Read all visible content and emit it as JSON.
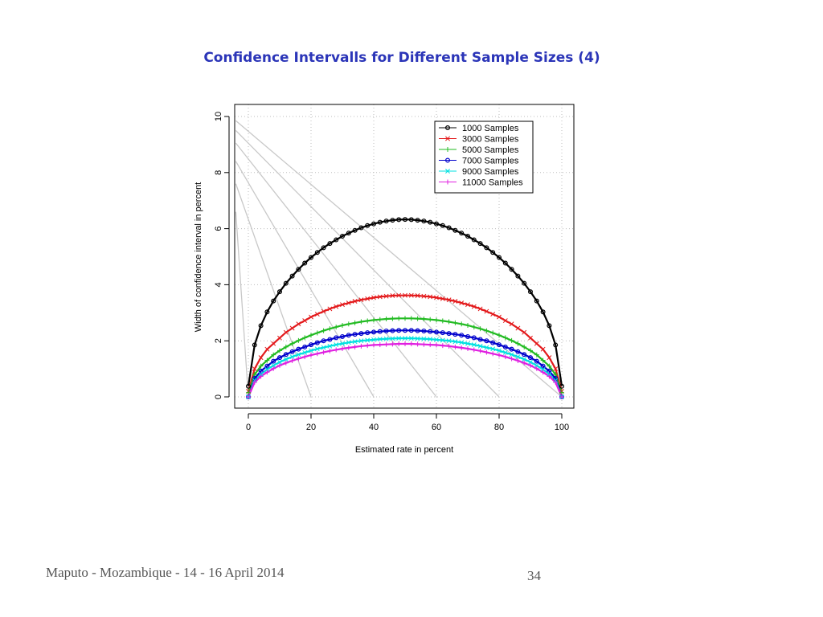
{
  "slide": {
    "title": "Confidence Intervalls for Different Sample Sizes (4)",
    "footer_left": "Maputo - Mozambique - 14 - 16 April 2014",
    "page_number": "34"
  },
  "chart_data": {
    "type": "line",
    "xlabel": "Estimated rate in percent",
    "ylabel": "Width of confidence interval in percent",
    "xlim": [
      0,
      100
    ],
    "ylim": [
      0,
      10
    ],
    "x_ticks": [
      "0",
      "20",
      "40",
      "60",
      "80",
      "100"
    ],
    "y_ticks": [
      "0",
      "2",
      "4",
      "6",
      "8",
      "10"
    ],
    "grid": true,
    "legend_position": "top-right",
    "x": [
      0,
      2,
      4,
      6,
      8,
      10,
      12,
      14,
      16,
      18,
      20,
      22,
      24,
      26,
      28,
      30,
      32,
      34,
      36,
      38,
      40,
      42,
      44,
      46,
      48,
      50,
      52,
      54,
      56,
      58,
      60,
      62,
      64,
      66,
      68,
      70,
      72,
      74,
      76,
      78,
      80,
      82,
      84,
      86,
      88,
      90,
      92,
      94,
      96,
      98,
      100
    ],
    "series": [
      {
        "name": "1000 Samples",
        "color": "#000000",
        "marker": "o",
        "values": [
          0.38,
          1.85,
          2.54,
          3.03,
          3.42,
          3.75,
          4.05,
          4.31,
          4.55,
          4.77,
          4.97,
          5.15,
          5.32,
          5.47,
          5.6,
          5.73,
          5.84,
          5.94,
          6.03,
          6.11,
          6.17,
          6.23,
          6.27,
          6.3,
          6.32,
          6.33,
          6.32,
          6.3,
          6.27,
          6.23,
          6.17,
          6.11,
          6.03,
          5.94,
          5.84,
          5.73,
          5.6,
          5.47,
          5.32,
          5.15,
          4.97,
          4.77,
          4.55,
          4.31,
          4.05,
          3.75,
          3.42,
          3.03,
          2.54,
          1.85,
          0.38
        ]
      },
      {
        "name": "3000 Samples",
        "color": "#e31a1c",
        "marker": "x",
        "values": [
          0.2,
          1.0,
          1.4,
          1.7,
          1.9,
          2.1,
          2.3,
          2.45,
          2.6,
          2.72,
          2.85,
          2.95,
          3.05,
          3.14,
          3.22,
          3.29,
          3.35,
          3.41,
          3.46,
          3.5,
          3.54,
          3.57,
          3.59,
          3.61,
          3.62,
          3.62,
          3.62,
          3.61,
          3.59,
          3.57,
          3.54,
          3.5,
          3.46,
          3.41,
          3.35,
          3.29,
          3.22,
          3.14,
          3.05,
          2.95,
          2.85,
          2.72,
          2.6,
          2.45,
          2.3,
          2.1,
          1.9,
          1.7,
          1.4,
          1.0,
          0.2
        ]
      },
      {
        "name": "5000 Samples",
        "color": "#22bb22",
        "marker": "+",
        "values": [
          0.15,
          0.8,
          1.1,
          1.3,
          1.5,
          1.65,
          1.78,
          1.9,
          2.01,
          2.11,
          2.2,
          2.28,
          2.36,
          2.43,
          2.49,
          2.55,
          2.6,
          2.64,
          2.68,
          2.71,
          2.74,
          2.76,
          2.78,
          2.79,
          2.8,
          2.8,
          2.8,
          2.79,
          2.78,
          2.76,
          2.74,
          2.71,
          2.68,
          2.64,
          2.6,
          2.55,
          2.49,
          2.43,
          2.36,
          2.28,
          2.2,
          2.11,
          2.01,
          1.9,
          1.78,
          1.65,
          1.5,
          1.3,
          1.1,
          0.8,
          0.15
        ]
      },
      {
        "name": "7000 Samples",
        "color": "#0000cc",
        "marker": "o",
        "values": [
          0.0,
          0.66,
          0.92,
          1.1,
          1.27,
          1.4,
          1.51,
          1.61,
          1.7,
          1.78,
          1.86,
          1.93,
          2.0,
          2.05,
          2.11,
          2.15,
          2.2,
          2.23,
          2.26,
          2.29,
          2.31,
          2.33,
          2.35,
          2.36,
          2.37,
          2.37,
          2.37,
          2.36,
          2.35,
          2.33,
          2.31,
          2.29,
          2.26,
          2.23,
          2.2,
          2.15,
          2.11,
          2.05,
          2.0,
          1.93,
          1.86,
          1.78,
          1.7,
          1.61,
          1.51,
          1.4,
          1.27,
          1.1,
          0.92,
          0.66,
          0.0
        ]
      },
      {
        "name": "9000 Samples",
        "color": "#00e0e0",
        "marker": "x",
        "values": [
          0.0,
          0.58,
          0.81,
          0.98,
          1.12,
          1.24,
          1.34,
          1.43,
          1.51,
          1.58,
          1.65,
          1.71,
          1.76,
          1.81,
          1.86,
          1.9,
          1.94,
          1.97,
          2.0,
          2.02,
          2.04,
          2.06,
          2.07,
          2.08,
          2.09,
          2.09,
          2.09,
          2.08,
          2.07,
          2.06,
          2.04,
          2.02,
          2.0,
          1.97,
          1.94,
          1.9,
          1.86,
          1.81,
          1.76,
          1.71,
          1.65,
          1.58,
          1.51,
          1.43,
          1.34,
          1.24,
          1.12,
          0.98,
          0.81,
          0.58,
          0.0
        ]
      },
      {
        "name": "11000 Samples",
        "color": "#e020e0",
        "marker": "+",
        "values": [
          0.0,
          0.52,
          0.73,
          0.88,
          1.01,
          1.12,
          1.21,
          1.29,
          1.36,
          1.43,
          1.49,
          1.54,
          1.59,
          1.64,
          1.68,
          1.72,
          1.75,
          1.78,
          1.81,
          1.83,
          1.85,
          1.86,
          1.87,
          1.88,
          1.89,
          1.89,
          1.89,
          1.88,
          1.87,
          1.86,
          1.85,
          1.83,
          1.81,
          1.78,
          1.75,
          1.72,
          1.68,
          1.64,
          1.59,
          1.54,
          1.49,
          1.43,
          1.36,
          1.29,
          1.21,
          1.12,
          1.01,
          0.88,
          0.73,
          0.52,
          0.0
        ]
      }
    ],
    "decorative_lines": [
      {
        "from": [
          -4,
          9.5
        ],
        "to": [
          80,
          0
        ]
      },
      {
        "from": [
          -4,
          9.05
        ],
        "to": [
          60,
          0
        ]
      },
      {
        "from": [
          -4,
          8.4
        ],
        "to": [
          40,
          0
        ]
      },
      {
        "from": [
          -4,
          7.6
        ],
        "to": [
          20,
          0
        ]
      },
      {
        "from": [
          -4,
          6.6
        ],
        "to": [
          0,
          0
        ]
      },
      {
        "from": [
          -4,
          9.85
        ],
        "to": [
          100,
          0
        ]
      }
    ],
    "decorative_line_color": "#c8c8c8"
  }
}
